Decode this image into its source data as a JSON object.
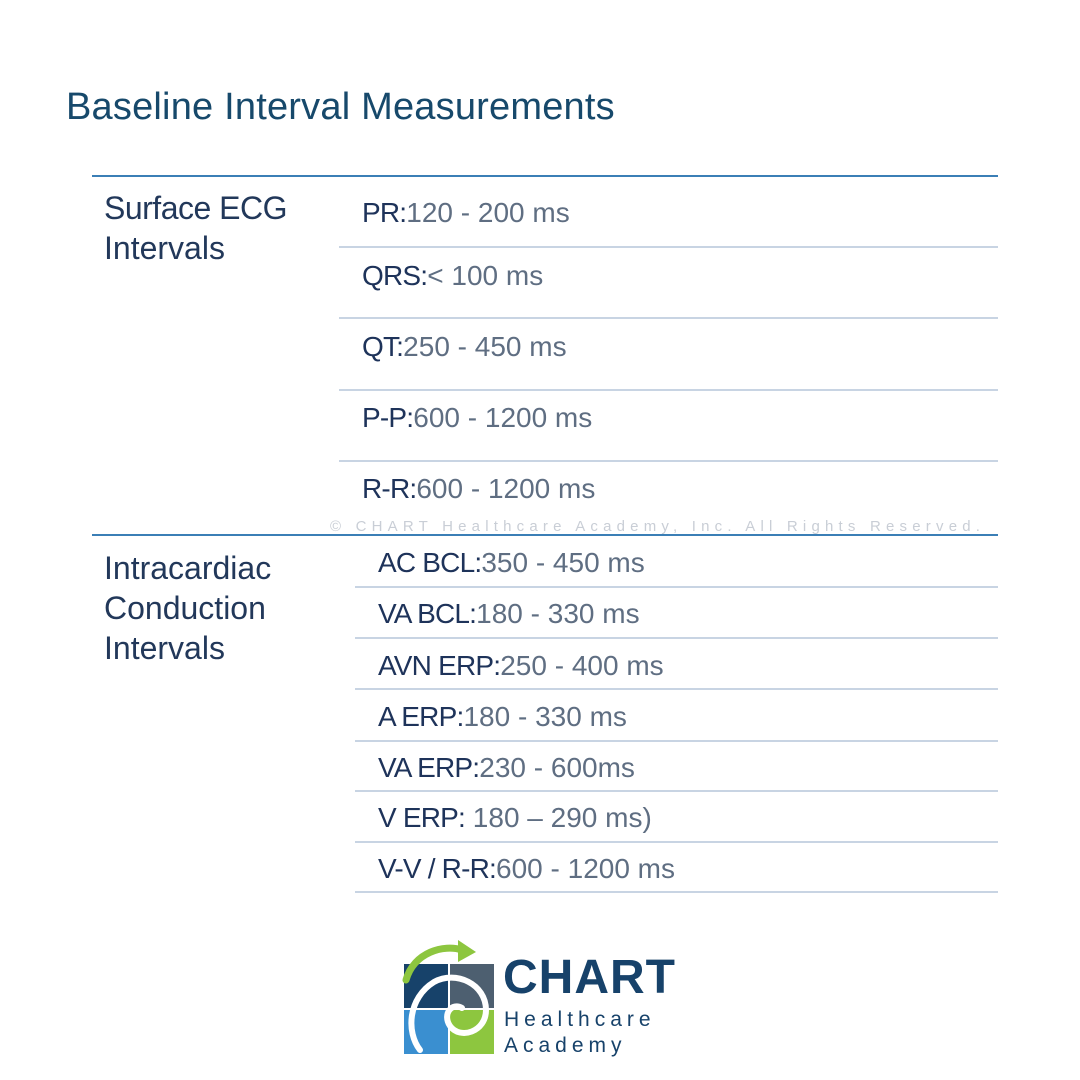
{
  "title": "Baseline Interval Measurements",
  "sections": [
    {
      "category": "Surface ECG Intervals",
      "category_lines": [
        "Surface ECG",
        "Intervals"
      ],
      "rows": [
        {
          "label": "PR:",
          "value": "120 - 200 ms"
        },
        {
          "label": "QRS:",
          "value": "< 100 ms"
        },
        {
          "label": "QT:",
          "value": "250 - 450 ms"
        },
        {
          "label": "P-P:",
          "value": "600 - 1200 ms"
        },
        {
          "label": "R-R:",
          "value": "600 - 1200 ms"
        }
      ]
    },
    {
      "category": "Intracardiac Conduction Intervals",
      "category_lines": [
        "Intracardiac",
        "Conduction",
        "Intervals"
      ],
      "rows": [
        {
          "label": "AC BCL:",
          "value": "350 - 450 ms"
        },
        {
          "label": "VA BCL:",
          "value": "180 - 330 ms"
        },
        {
          "label": "AVN ERP:",
          "value": "250 - 400 ms"
        },
        {
          "label": "A ERP:",
          "value": "180 - 330 ms"
        },
        {
          "label": "VA ERP:",
          "value": "230 - 600ms"
        },
        {
          "label": "V ERP:",
          "value": " 180 – 290 ms)"
        },
        {
          "label": "V-V / R-R:",
          "value": "600 - 1200 ms"
        }
      ]
    }
  ],
  "watermark": "© CHART Healthcare Academy, Inc. All Rights Reserved.",
  "logo": {
    "line1": "CHART",
    "line2": "Healthcare",
    "line3": "Academy",
    "colors": {
      "navy": "#17426a",
      "slate": "#4d5f70",
      "blue": "#3a8fd0",
      "green": "#8dc63f",
      "light_green": "#b5d96a"
    }
  }
}
